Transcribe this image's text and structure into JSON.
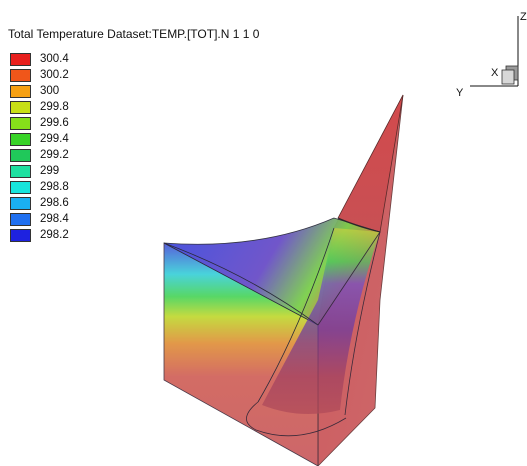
{
  "title": "Total Temperature Dataset:TEMP.[TOT].N 1 1 0",
  "legend": {
    "items": [
      {
        "label": "300.4",
        "color": "#e8201e"
      },
      {
        "label": "300.2",
        "color": "#f0561a"
      },
      {
        "label": "300",
        "color": "#f6a012"
      },
      {
        "label": "299.8",
        "color": "#c8e016"
      },
      {
        "label": "299.6",
        "color": "#86e01a"
      },
      {
        "label": "299.4",
        "color": "#38d428"
      },
      {
        "label": "299.2",
        "color": "#20c85a"
      },
      {
        "label": "299",
        "color": "#1ee0a0"
      },
      {
        "label": "298.8",
        "color": "#18e4dc"
      },
      {
        "label": "298.6",
        "color": "#1ab0f2"
      },
      {
        "label": "298.4",
        "color": "#2070f0"
      },
      {
        "label": "298.2",
        "color": "#1e22e0"
      }
    ]
  },
  "axes": {
    "z_label": "Z",
    "x_label": "X",
    "y_label": "Y"
  }
}
